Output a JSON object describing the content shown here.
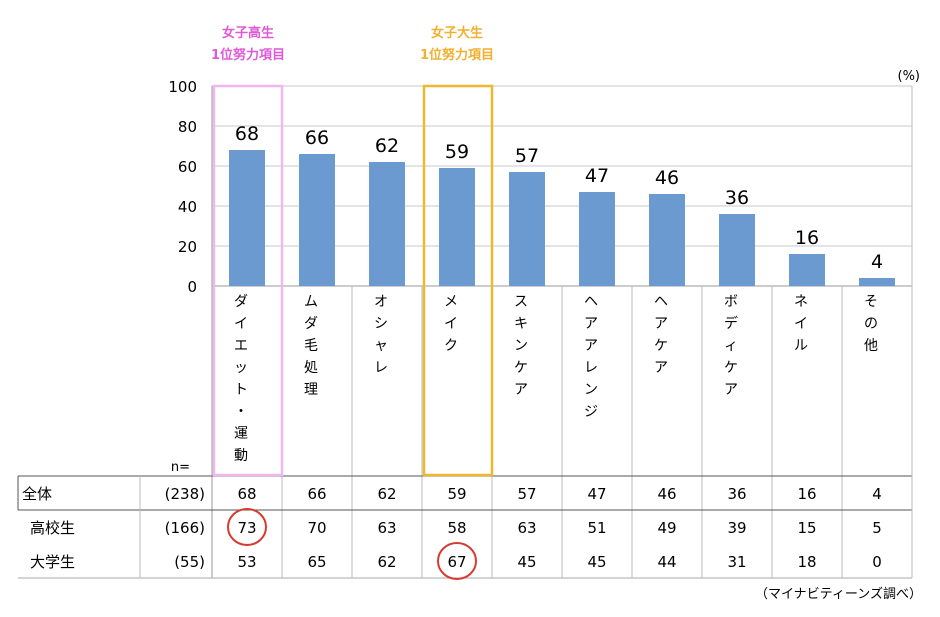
{
  "chart_data": {
    "type": "bar",
    "unit": "(%)",
    "ylim": [
      0,
      100
    ],
    "yticks": [
      "100",
      "80",
      "60",
      "40",
      "20",
      "0"
    ],
    "grid": true,
    "bar_color": "#6a9ad0",
    "categories": [
      "ダイエット・運動",
      "ムダ毛処理",
      "オシャレ",
      "メイク",
      "スキンケア",
      "ヘアアレンジ",
      "ヘアケア",
      "ボディケア",
      "ネイル",
      "その他"
    ],
    "values": [
      68,
      66,
      62,
      59,
      57,
      47,
      46,
      36,
      16,
      4
    ],
    "highlights": [
      {
        "category_index": 0,
        "label_line1": "女子高生",
        "label_line2": "1位努力項目",
        "color": "#e05ad8",
        "box_color": "#f0b8f0"
      },
      {
        "category_index": 3,
        "label_line1": "女子大生",
        "label_line2": "1位努力項目",
        "color": "#f0b030",
        "box_color": "#f0b830"
      }
    ]
  },
  "table": {
    "n_label": "n=",
    "rows": [
      {
        "label": "全体",
        "n": "(238)",
        "values": [
          "68",
          "66",
          "62",
          "59",
          "57",
          "47",
          "46",
          "36",
          "16",
          "4"
        ]
      },
      {
        "label": "高校生",
        "n": "(166)",
        "values": [
          "73",
          "70",
          "63",
          "58",
          "63",
          "51",
          "49",
          "39",
          "15",
          "5"
        ]
      },
      {
        "label": "大学生",
        "n": "(55)",
        "values": [
          "53",
          "65",
          "62",
          "67",
          "45",
          "45",
          "44",
          "31",
          "18",
          "0"
        ]
      }
    ],
    "circled": [
      {
        "row": 1,
        "col": 0
      },
      {
        "row": 2,
        "col": 3
      }
    ],
    "circle_color": "#d93a2f"
  },
  "source": "（マイナビティーンズ調べ）"
}
